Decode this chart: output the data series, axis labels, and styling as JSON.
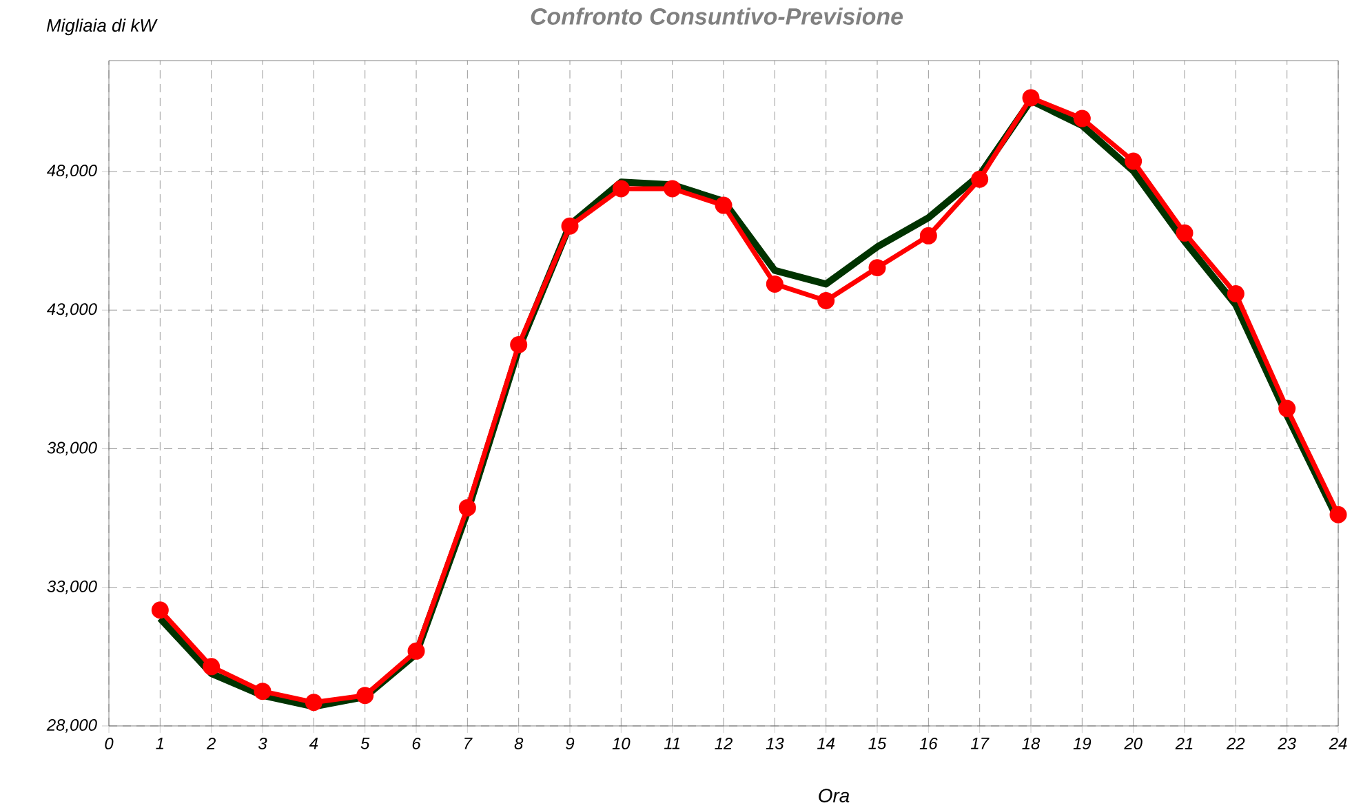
{
  "chart_data": {
    "type": "line",
    "title": "Confronto Consuntivo-Previsione",
    "xlabel": "Ora",
    "ylabel": "Migliaia di kW",
    "x": [
      1,
      2,
      3,
      4,
      5,
      6,
      7,
      8,
      9,
      10,
      11,
      12,
      13,
      14,
      15,
      16,
      17,
      18,
      19,
      20,
      21,
      22,
      23,
      24
    ],
    "series": [
      {
        "color": "#003300",
        "marker": "none",
        "line_style": "solid",
        "values": [
          31880,
          29890,
          29100,
          28700,
          29050,
          30600,
          35720,
          41600,
          46080,
          47620,
          47520,
          46930,
          44430,
          43940,
          45280,
          46330,
          47870,
          50560,
          49660,
          48020,
          45480,
          43190,
          39200,
          35420
        ]
      },
      {
        "color": "#ff0000",
        "marker": "circle",
        "line_style": "solid",
        "values": [
          32180,
          30140,
          29250,
          28850,
          29100,
          30700,
          35870,
          41750,
          46030,
          47380,
          47380,
          46780,
          43940,
          43340,
          44530,
          45680,
          47720,
          50660,
          49910,
          48370,
          45780,
          43590,
          39450,
          35620
        ]
      }
    ],
    "xlim": [
      0,
      24
    ],
    "ylim": [
      28000,
      52000
    ],
    "xticks": [
      0,
      1,
      2,
      3,
      4,
      5,
      6,
      7,
      8,
      9,
      10,
      11,
      12,
      13,
      14,
      15,
      16,
      17,
      18,
      19,
      20,
      21,
      22,
      23,
      24
    ],
    "yticks": [
      {
        "value": 28000,
        "label": "28,000"
      },
      {
        "value": 33000,
        "label": "33,000"
      },
      {
        "value": 38000,
        "label": "38,000"
      },
      {
        "value": 43000,
        "label": "43,000"
      },
      {
        "value": 48000,
        "label": "48,000"
      }
    ],
    "grid": true
  }
}
